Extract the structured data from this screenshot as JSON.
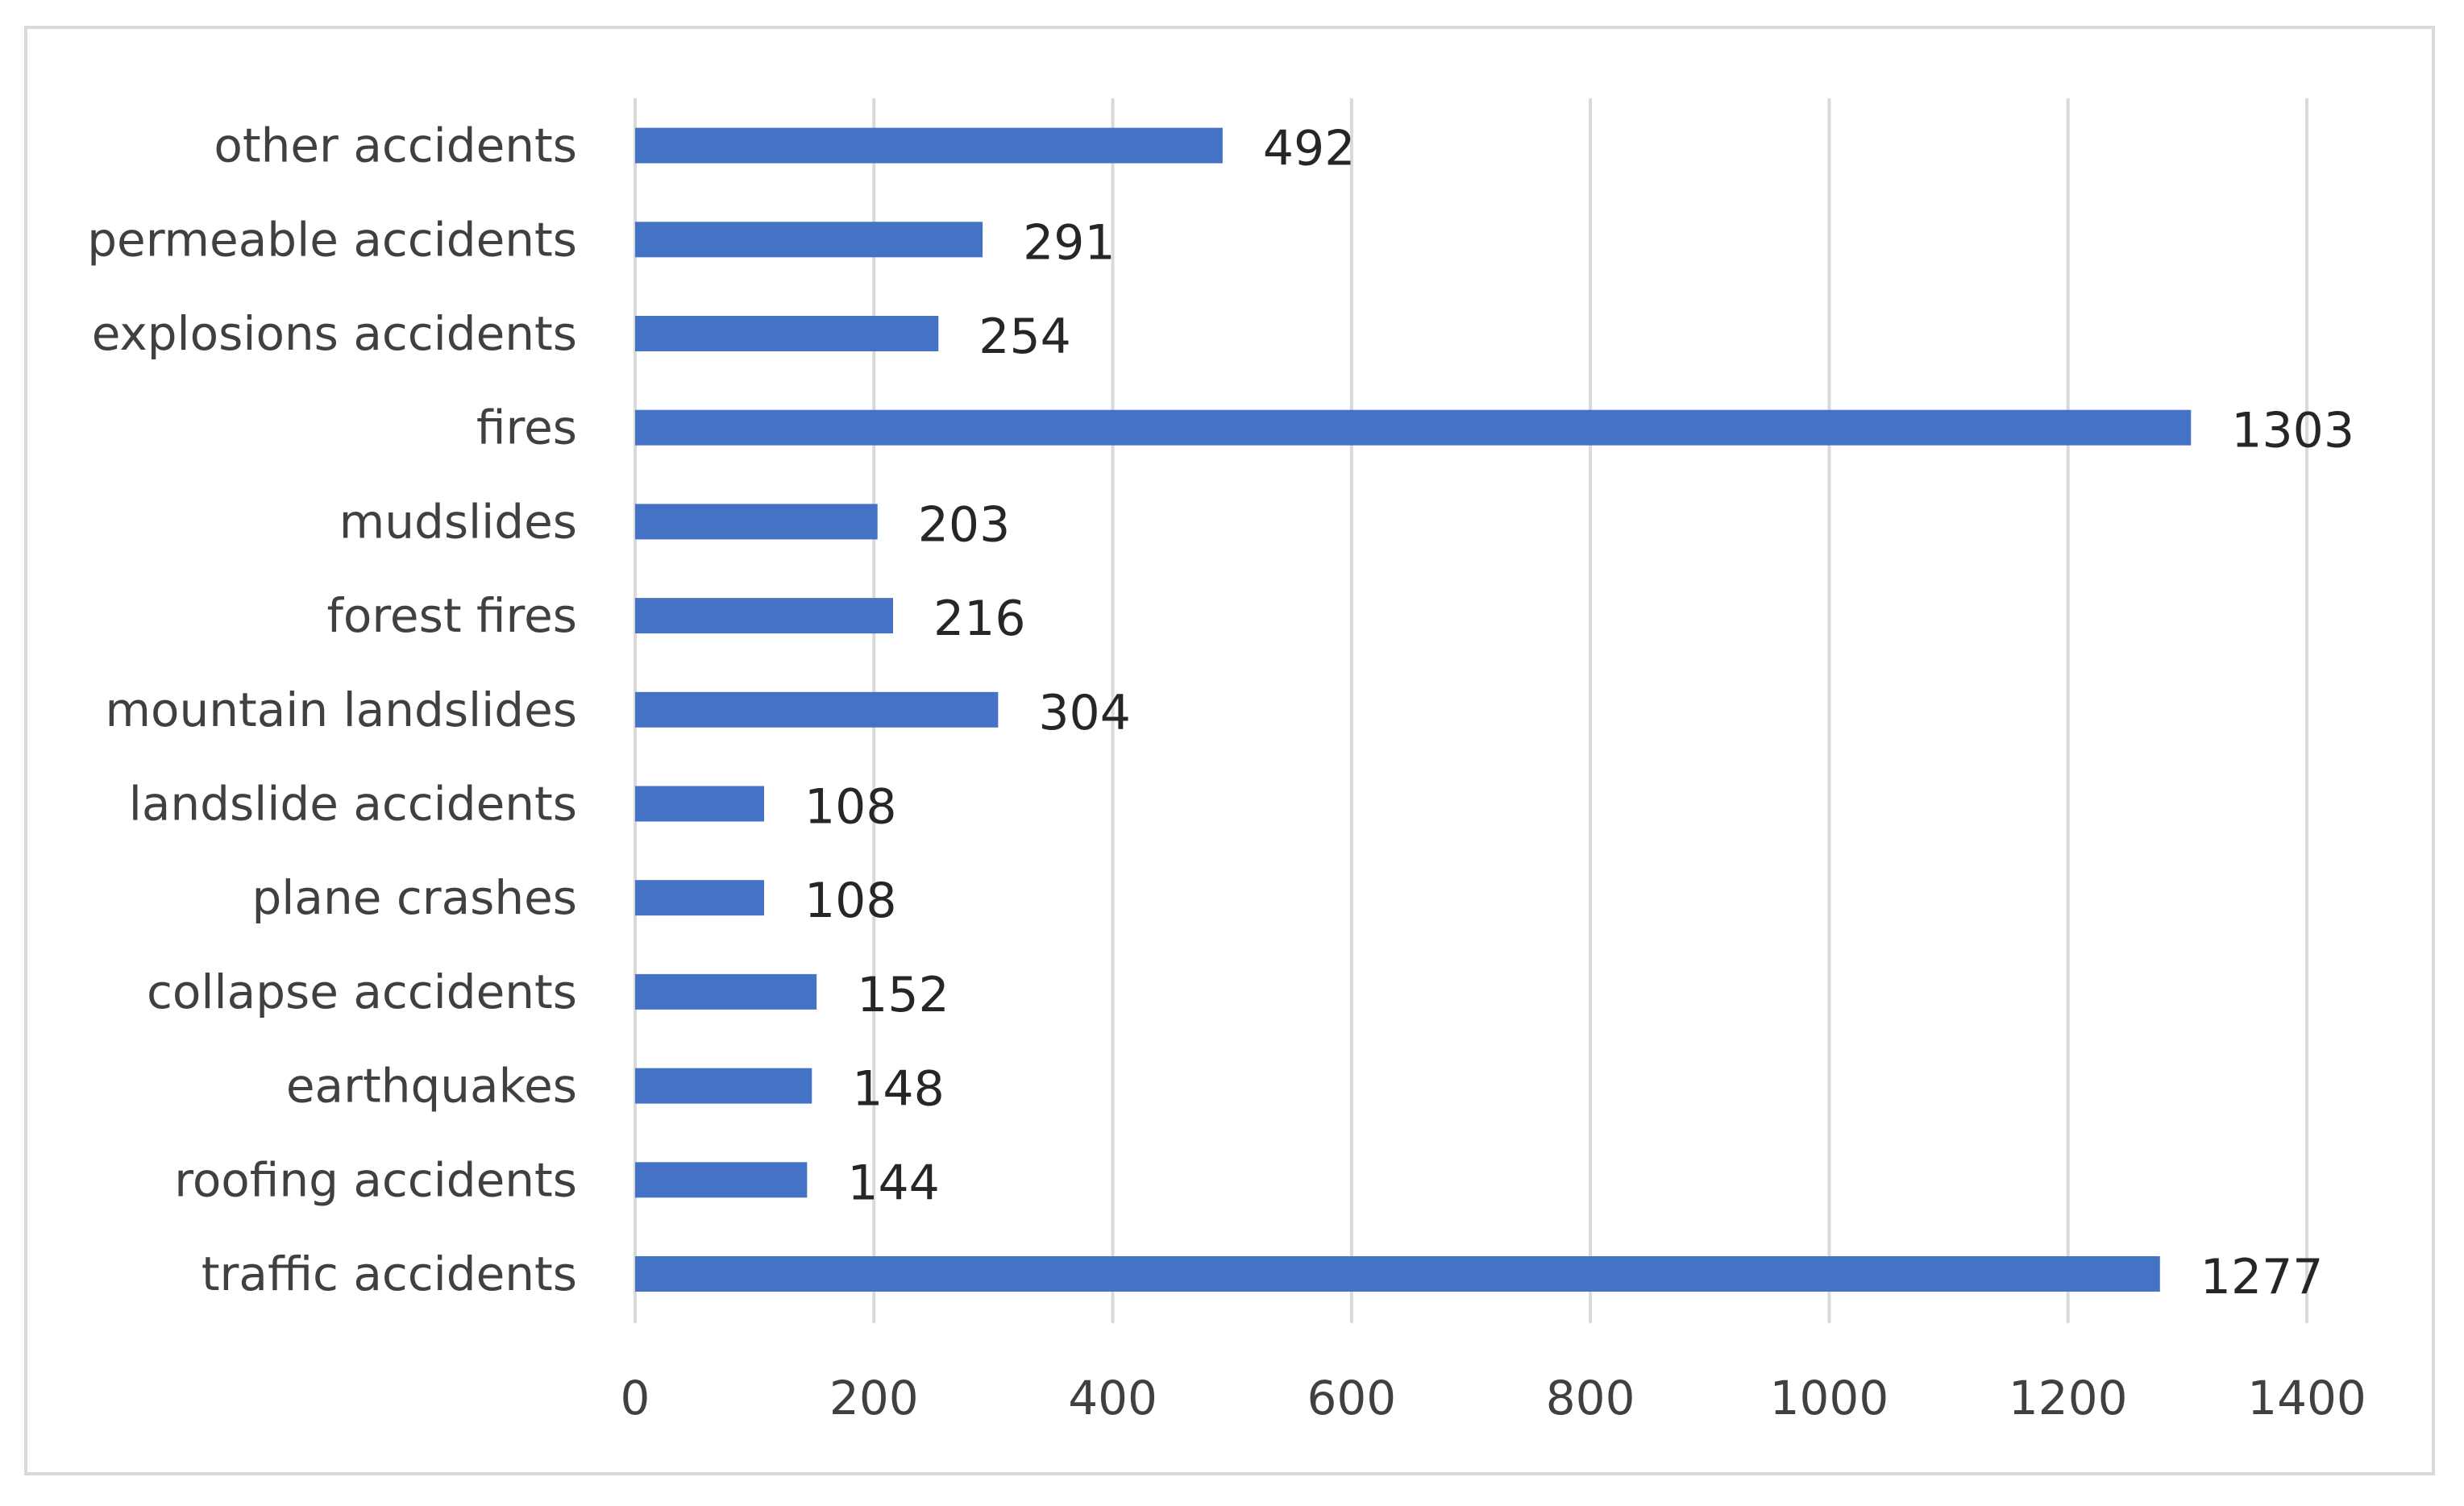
{
  "chart_data": {
    "type": "bar",
    "orientation": "horizontal",
    "title": "",
    "xlabel": "",
    "ylabel": "",
    "categories": [
      "traffic accidents",
      "roofing accidents",
      "earthquakes",
      "collapse accidents",
      "plane crashes",
      "landslide accidents",
      "mountain landslides",
      "forest fires",
      "mudslides",
      "fires",
      "explosions accidents",
      "permeable accidents",
      "other accidents"
    ],
    "values": [
      1277,
      144,
      148,
      152,
      108,
      108,
      304,
      216,
      203,
      1303,
      254,
      291,
      492
    ],
    "xlim": [
      0,
      1400
    ],
    "xticks": [
      0,
      200,
      400,
      600,
      800,
      1000,
      1200,
      1400
    ],
    "grid": true,
    "legend": "none",
    "bar_color": "#4472c4",
    "grid_color": "#d9d9d9"
  }
}
